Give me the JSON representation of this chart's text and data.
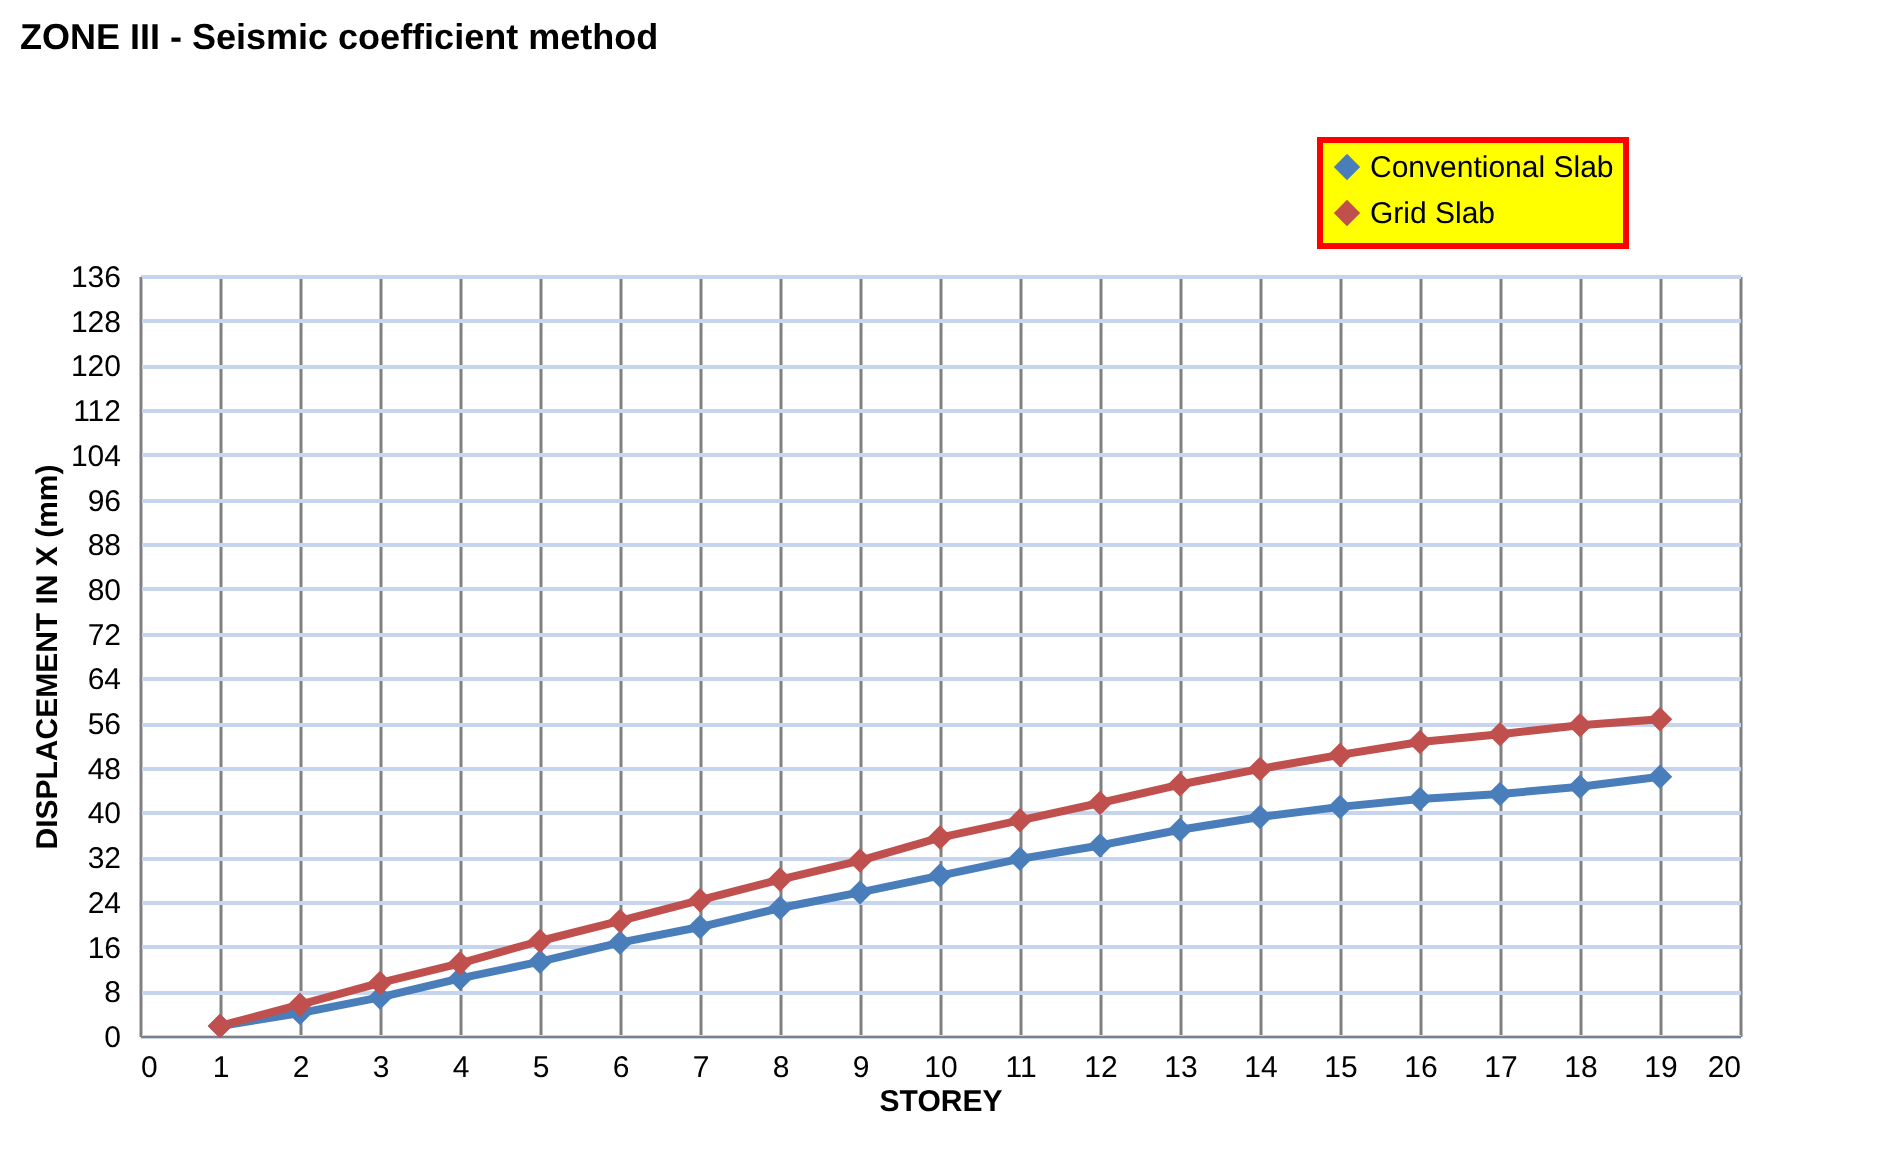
{
  "chart_data": {
    "type": "line",
    "title": "ZONE III - Seismic coefficient method",
    "xlabel": "STOREY",
    "ylabel": "DISPLACEMENT IN X (mm)",
    "x": [
      1,
      2,
      3,
      4,
      5,
      6,
      7,
      8,
      9,
      10,
      11,
      12,
      13,
      14,
      15,
      16,
      17,
      18,
      19
    ],
    "series": [
      {
        "name": "Conventional Slab",
        "color": "#4a7ebb",
        "values": [
          1.8,
          4.1,
          6.9,
          10.3,
          13.3,
          16.7,
          19.5,
          22.9,
          25.7,
          28.7,
          31.7,
          34.1,
          36.9,
          39.2,
          41,
          42.4,
          43.3,
          44.6,
          46.4
        ]
      },
      {
        "name": "Grid Slab",
        "color": "#c0504d",
        "values": [
          1.8,
          5.6,
          9.5,
          13,
          17,
          20.6,
          24.3,
          28,
          31.4,
          35.5,
          38.6,
          41.7,
          45,
          47.8,
          50.3,
          52.6,
          54,
          55.6,
          56.7
        ]
      }
    ],
    "xlim": [
      0,
      20
    ],
    "xticks": [
      0,
      1,
      2,
      3,
      4,
      5,
      6,
      7,
      8,
      9,
      10,
      11,
      12,
      13,
      14,
      15,
      16,
      17,
      18,
      19,
      20
    ],
    "ylim": [
      0,
      136
    ],
    "yticks": [
      0,
      8,
      16,
      24,
      32,
      40,
      48,
      56,
      64,
      72,
      80,
      88,
      96,
      104,
      112,
      120,
      128,
      136
    ],
    "grid": true,
    "legend": "top right",
    "marker": "diamond",
    "line_style": "solid"
  }
}
